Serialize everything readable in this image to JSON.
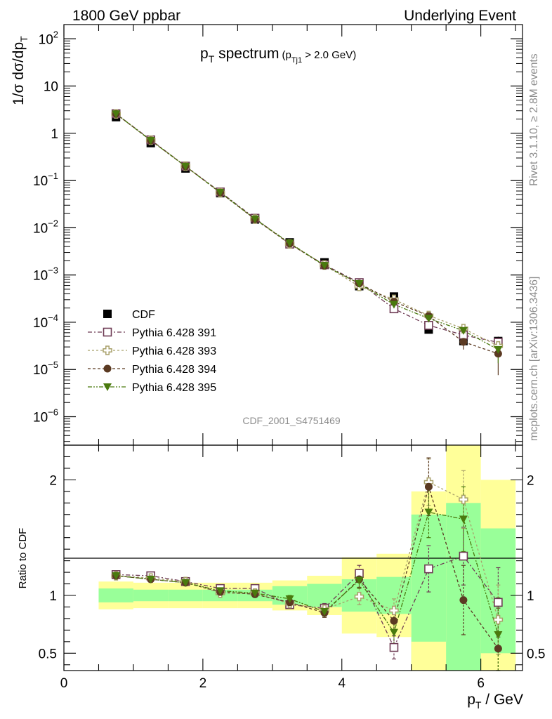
{
  "header": {
    "left": "1800 GeV ppbar",
    "right": "Underlying Event"
  },
  "side": {
    "rivet": "Rivet 3.1.10, ≥ 2.8M events",
    "mcplots": "mcplots.cern.ch [arXiv:1306.3436]"
  },
  "chart_data": {
    "type": "scatter",
    "analysis_id": "CDF_2001_S4751469",
    "title": {
      "main": "p",
      "main_sub": "T",
      "main_rest": " spectrum",
      "cut_open": "(p",
      "cut_sub": "Tj1",
      "cut_rest": " > 2.0 GeV)"
    },
    "ylabel": {
      "main": "1/σ dσ/dp",
      "sub": "T"
    },
    "xlabel": {
      "main": "p",
      "sub": "T",
      "rest": " / GeV"
    },
    "ratio_ylabel": "Ratio to CDF",
    "xlim": [
      0,
      6.6
    ],
    "ylim": [
      2.5e-07,
      200
    ],
    "yscale": "log",
    "ratio_ylim": [
      0.35,
      2.3
    ],
    "x_ticks": [
      0,
      2,
      4,
      6
    ],
    "y_ticks": [
      {
        "v": 1e-06,
        "label": "10",
        "exp": "−6"
      },
      {
        "v": 1e-05,
        "label": "10",
        "exp": "−5"
      },
      {
        "v": 0.0001,
        "label": "10",
        "exp": "−4"
      },
      {
        "v": 0.001,
        "label": "10",
        "exp": "−3"
      },
      {
        "v": 0.01,
        "label": "10",
        "exp": "−2"
      },
      {
        "v": 0.1,
        "label": "10",
        "exp": "−1"
      },
      {
        "v": 1,
        "label": "1",
        "exp": ""
      },
      {
        "v": 10,
        "label": "10",
        "exp": ""
      },
      {
        "v": 100,
        "label": "10",
        "exp": "2"
      }
    ],
    "ratio_ticks": [
      {
        "v": 0.5,
        "label": "0.5"
      },
      {
        "v": 1,
        "label": "1"
      },
      {
        "v": 2,
        "label": "2"
      }
    ],
    "legend_position": "lower-left",
    "bins": [
      [
        0.5,
        1.0
      ],
      [
        1.0,
        1.5
      ],
      [
        1.5,
        2.0
      ],
      [
        2.0,
        2.5
      ],
      [
        2.5,
        3.0
      ],
      [
        3.0,
        3.5
      ],
      [
        3.5,
        4.0
      ],
      [
        4.0,
        4.5
      ],
      [
        4.5,
        5.0
      ],
      [
        5.0,
        5.5
      ],
      [
        5.5,
        6.0
      ],
      [
        6.0,
        6.5
      ]
    ],
    "x": [
      0.75,
      1.25,
      1.75,
      2.25,
      2.75,
      3.25,
      3.75,
      4.25,
      4.75,
      5.25,
      5.75,
      6.25
    ],
    "data": {
      "name": "CDF",
      "values": [
        2.2,
        0.62,
        0.18,
        0.054,
        0.015,
        0.0049,
        0.00185,
        0.00058,
        0.00035,
        7e-05,
        4e-05,
        4e-05
      ]
    },
    "ratio_band_inner": [
      [
        0.94,
        1.06
      ],
      [
        0.95,
        1.05
      ],
      [
        0.95,
        1.05
      ],
      [
        0.95,
        1.05
      ],
      [
        0.95,
        1.05
      ],
      [
        0.92,
        1.08
      ],
      [
        0.9,
        1.1
      ],
      [
        0.86,
        1.14
      ],
      [
        0.84,
        1.16
      ],
      [
        0.3,
        1.7
      ],
      [
        0.3,
        1.8
      ],
      [
        0.3,
        1.58
      ]
    ],
    "ratio_band_outer": [
      [
        0.88,
        1.12
      ],
      [
        0.89,
        1.11
      ],
      [
        0.89,
        1.11
      ],
      [
        0.89,
        1.11
      ],
      [
        0.89,
        1.11
      ],
      [
        0.87,
        1.13
      ],
      [
        0.83,
        1.17
      ],
      [
        0.67,
        1.33
      ],
      [
        0.64,
        1.36
      ],
      [
        0.3,
        1.9
      ],
      [
        0.3,
        2.3
      ],
      [
        0.3,
        2.0
      ]
    ],
    "ratio_band_cut": [
      null,
      null,
      null,
      null,
      null,
      null,
      null,
      null,
      null,
      [
        0.35,
        0.6
      ],
      null,
      [
        0.35,
        0.5
      ]
    ],
    "series": [
      {
        "name": "Pythia 6.428 391",
        "color": "#6e3b54",
        "marker": "open-square",
        "dash": "6,3,2,3",
        "ratio": [
          1.18,
          1.17,
          1.12,
          1.06,
          1.06,
          0.92,
          0.89,
          1.19,
          0.55,
          1.23,
          1.34,
          0.94
        ],
        "ratio_err": [
          0.02,
          0.02,
          0.02,
          0.02,
          0.02,
          0.03,
          0.04,
          0.07,
          0.1,
          0.2,
          0.25,
          0.3
        ]
      },
      {
        "name": "Pythia 6.428 393",
        "color": "#a8a06a",
        "marker": "open-cross",
        "dash": "3,3",
        "ratio": [
          1.17,
          1.15,
          1.12,
          1.02,
          1.02,
          0.93,
          0.88,
          0.99,
          0.87,
          1.98,
          1.83,
          0.79
        ],
        "ratio_err": [
          0.02,
          0.02,
          0.02,
          0.02,
          0.02,
          0.03,
          0.04,
          0.07,
          0.1,
          0.2,
          0.25,
          0.3
        ]
      },
      {
        "name": "Pythia 6.428 394",
        "color": "#5b3a22",
        "marker": "filled-circle",
        "dash": "4,3",
        "ratio": [
          1.17,
          1.14,
          1.11,
          1.03,
          1.01,
          0.94,
          0.85,
          1.14,
          0.78,
          1.94,
          0.96,
          0.54
        ],
        "ratio_err": [
          0.02,
          0.02,
          0.02,
          0.02,
          0.02,
          0.03,
          0.04,
          0.07,
          0.1,
          0.25,
          0.3,
          0.35
        ]
      },
      {
        "name": "Pythia 6.428 395",
        "color": "#4a7a0e",
        "marker": "filled-triangle-down",
        "dash": "6,2,2,2,2,2",
        "ratio": [
          1.17,
          1.14,
          1.11,
          1.04,
          1.02,
          0.97,
          0.86,
          1.13,
          0.68,
          1.72,
          1.66,
          0.66
        ],
        "ratio_err": [
          0.02,
          0.02,
          0.02,
          0.02,
          0.02,
          0.03,
          0.04,
          0.07,
          0.1,
          0.22,
          0.28,
          0.32
        ]
      }
    ]
  }
}
